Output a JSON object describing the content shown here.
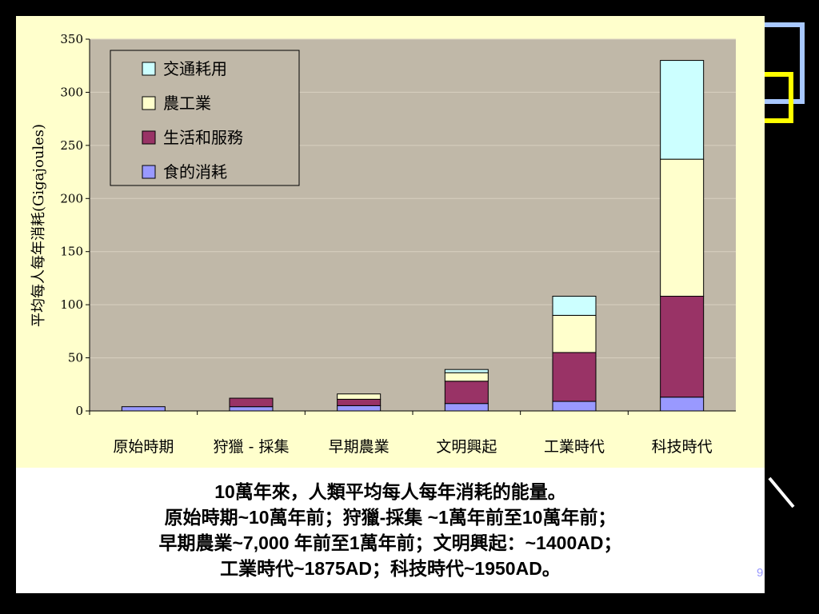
{
  "chart_data": {
    "type": "bar",
    "stacked": true,
    "categories": [
      "原始時期",
      "狩獵 - 採集",
      "早期農業",
      "文明興起",
      "工業時代",
      "科技時代"
    ],
    "series": [
      {
        "name": "食的消耗",
        "color": "#9999ff",
        "values": [
          4,
          4,
          5,
          7,
          9,
          13
        ]
      },
      {
        "name": "生活和服務",
        "color": "#993366",
        "values": [
          0,
          8,
          6,
          21,
          46,
          95
        ]
      },
      {
        "name": "農工業",
        "color": "#ffffcc",
        "values": [
          0,
          0,
          5,
          8,
          35,
          129
        ]
      },
      {
        "name": "交通耗用",
        "color": "#ccffff",
        "values": [
          0,
          0,
          0,
          3,
          18,
          93
        ]
      }
    ],
    "ylabel": "平均每人每年消耗(Gigajoules)",
    "ylim": [
      0,
      350
    ],
    "yticks": [
      0,
      50,
      100,
      150,
      200,
      250,
      300,
      350
    ],
    "plot_bg": "#c0b8a8",
    "legend_position": "top-left",
    "grid": true
  },
  "caption": {
    "lines": [
      "10萬年來，人類平均每人每年消耗的能量。",
      "原始時期~10萬年前；狩獵-採集 ~1萬年前至10萬年前；",
      "早期農業~7,000 年前至1萬年前；文明興起：~1400AD；",
      "工業時代~1875AD；科技時代~1950AD。"
    ]
  },
  "page_number": "9"
}
